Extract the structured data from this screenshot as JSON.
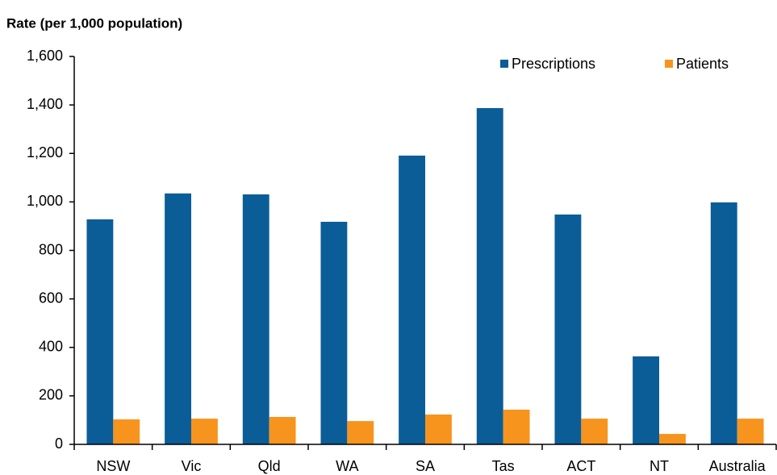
{
  "chart_data": {
    "type": "bar",
    "y_label": "Rate (per 1,000 population)",
    "categories": [
      "NSW",
      "Vic",
      "Qld",
      "WA",
      "SA",
      "Tas",
      "ACT",
      "NT",
      "Australia"
    ],
    "series": [
      {
        "name": "Prescriptions",
        "color": "#0b5d97",
        "values": [
          928,
          1035,
          1031,
          918,
          1191,
          1387,
          948,
          363,
          998
        ]
      },
      {
        "name": "Patients",
        "color": "#f7941d",
        "values": [
          103,
          106,
          113,
          96,
          123,
          143,
          106,
          43,
          106
        ]
      }
    ],
    "ylim": [
      0,
      1600
    ],
    "yticks": [
      0,
      200,
      400,
      600,
      800,
      {
        "value": 1000,
        "label": "1,000"
      },
      {
        "value": 1200,
        "label": "1,200"
      },
      {
        "value": 1400,
        "label": "1,400"
      },
      {
        "value": 1600,
        "label": "1,600"
      }
    ],
    "grid": false,
    "legend": "top-right"
  }
}
